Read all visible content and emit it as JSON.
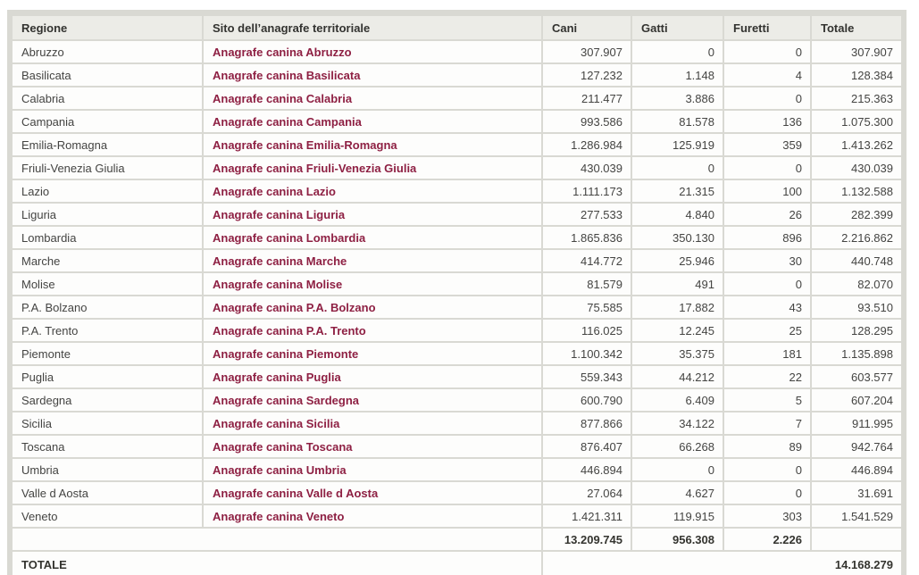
{
  "brand": {
    "link_color": "#8e2043",
    "grid_color": "#d9d9d3",
    "header_bg": "#ecece7"
  },
  "table": {
    "columns": [
      "Regione",
      "Sito dell’anagrafe territoriale",
      "Cani",
      "Gatti",
      "Furetti",
      "Totale"
    ],
    "rows": [
      {
        "regione": "Abruzzo",
        "sito": "Anagrafe canina Abruzzo",
        "cani": "307.907",
        "gatti": "0",
        "furetti": "0",
        "totale": "307.907"
      },
      {
        "regione": "Basilicata",
        "sito": "Anagrafe canina Basilicata",
        "cani": "127.232",
        "gatti": "1.148",
        "furetti": "4",
        "totale": "128.384"
      },
      {
        "regione": "Calabria",
        "sito": "Anagrafe canina Calabria",
        "cani": "211.477",
        "gatti": "3.886",
        "furetti": "0",
        "totale": "215.363"
      },
      {
        "regione": "Campania",
        "sito": "Anagrafe canina Campania",
        "cani": "993.586",
        "gatti": "81.578",
        "furetti": "136",
        "totale": "1.075.300"
      },
      {
        "regione": "Emilia-Romagna",
        "sito": "Anagrafe canina Emilia-Romagna",
        "cani": "1.286.984",
        "gatti": "125.919",
        "furetti": "359",
        "totale": "1.413.262"
      },
      {
        "regione": "Friuli-Venezia Giulia",
        "sito": "Anagrafe canina Friuli-Venezia Giulia",
        "cani": "430.039",
        "gatti": "0",
        "furetti": "0",
        "totale": "430.039"
      },
      {
        "regione": "Lazio",
        "sito": "Anagrafe canina Lazio",
        "cani": "1.111.173",
        "gatti": "21.315",
        "furetti": "100",
        "totale": "1.132.588"
      },
      {
        "regione": "Liguria",
        "sito": "Anagrafe canina Liguria",
        "cani": "277.533",
        "gatti": "4.840",
        "furetti": "26",
        "totale": "282.399"
      },
      {
        "regione": "Lombardia",
        "sito": "Anagrafe canina Lombardia",
        "cani": "1.865.836",
        "gatti": "350.130",
        "furetti": "896",
        "totale": "2.216.862"
      },
      {
        "regione": "Marche",
        "sito": "Anagrafe canina Marche",
        "cani": "414.772",
        "gatti": "25.946",
        "furetti": "30",
        "totale": "440.748"
      },
      {
        "regione": "Molise",
        "sito": "Anagrafe canina Molise",
        "cani": "81.579",
        "gatti": "491",
        "furetti": "0",
        "totale": "82.070"
      },
      {
        "regione": "P.A. Bolzano",
        "sito": "Anagrafe canina P.A. Bolzano",
        "cani": "75.585",
        "gatti": "17.882",
        "furetti": "43",
        "totale": "93.510"
      },
      {
        "regione": "P.A. Trento",
        "sito": "Anagrafe canina P.A. Trento",
        "cani": "116.025",
        "gatti": "12.245",
        "furetti": "25",
        "totale": "128.295"
      },
      {
        "regione": "Piemonte",
        "sito": "Anagrafe canina Piemonte",
        "cani": "1.100.342",
        "gatti": "35.375",
        "furetti": "181",
        "totale": "1.135.898"
      },
      {
        "regione": "Puglia",
        "sito": "Anagrafe canina Puglia",
        "cani": "559.343",
        "gatti": "44.212",
        "furetti": "22",
        "totale": "603.577"
      },
      {
        "regione": "Sardegna",
        "sito": "Anagrafe canina Sardegna",
        "cani": "600.790",
        "gatti": "6.409",
        "furetti": "5",
        "totale": "607.204"
      },
      {
        "regione": "Sicilia",
        "sito": "Anagrafe canina Sicilia",
        "cani": "877.866",
        "gatti": "34.122",
        "furetti": "7",
        "totale": "911.995"
      },
      {
        "regione": "Toscana",
        "sito": "Anagrafe canina Toscana",
        "cani": "876.407",
        "gatti": "66.268",
        "furetti": "89",
        "totale": "942.764"
      },
      {
        "regione": "Umbria",
        "sito": "Anagrafe canina Umbria",
        "cani": "446.894",
        "gatti": "0",
        "furetti": "0",
        "totale": "446.894"
      },
      {
        "regione": "Valle d Aosta",
        "sito": "Anagrafe canina Valle d Aosta",
        "cani": "27.064",
        "gatti": "4.627",
        "furetti": "0",
        "totale": "31.691"
      },
      {
        "regione": "Veneto",
        "sito": "Anagrafe canina Veneto",
        "cani": "1.421.311",
        "gatti": "119.915",
        "furetti": "303",
        "totale": "1.541.529"
      }
    ],
    "subtotal": {
      "cani": "13.209.745",
      "gatti": "956.308",
      "furetti": "2.226",
      "totale": ""
    },
    "grand_total": {
      "label": "TOTALE",
      "value": "14.168.279"
    }
  }
}
